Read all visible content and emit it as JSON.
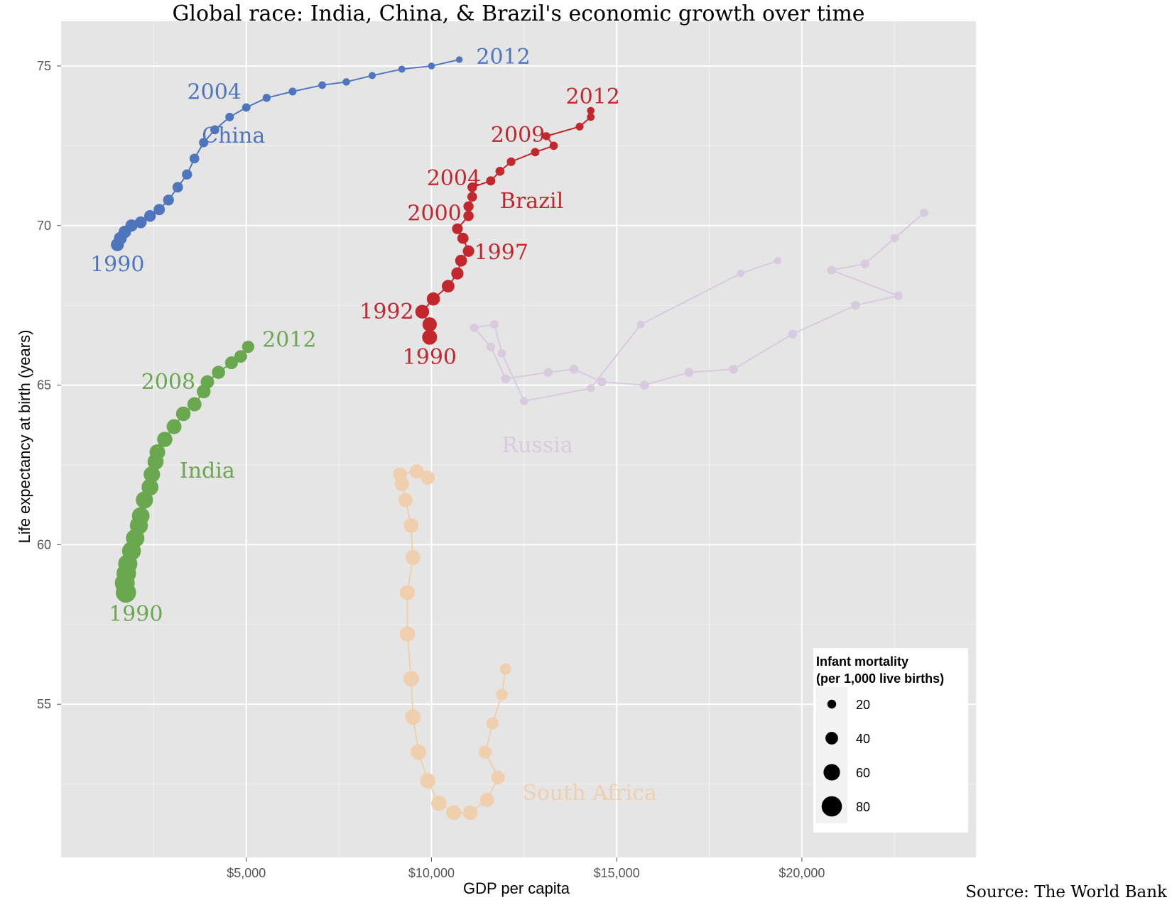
{
  "chart_data": {
    "type": "scatter",
    "title": "Global race: India, China, & Brazil's economic growth over time",
    "xlabel": "GDP per capita",
    "ylabel": "Life expectancy at birth (years)",
    "source": "Source: The World Bank",
    "xlim": [
      0,
      24700
    ],
    "ylim": [
      50.2,
      76.4
    ],
    "x_ticks": [
      5000,
      10000,
      15000,
      20000
    ],
    "x_tick_labels": [
      "$5,000",
      "$10,000",
      "$15,000",
      "$20,000"
    ],
    "y_ticks": [
      55,
      60,
      65,
      70,
      75
    ],
    "y_tick_labels": [
      "55",
      "60",
      "65",
      "70",
      "75"
    ],
    "grid": true,
    "legend": {
      "title_line1": "Infant mortality",
      "title_line2": "(per 1,000 live births)",
      "placement": "bottom-right",
      "entries": [
        {
          "label": "20",
          "value": 20
        },
        {
          "label": "40",
          "value": 40
        },
        {
          "label": "60",
          "value": 60
        },
        {
          "label": "80",
          "value": 80
        }
      ]
    },
    "series": [
      {
        "name": "China",
        "color": "#4f76bd",
        "opacity": 1,
        "points": [
          {
            "year": 1990,
            "x": 1520,
            "y": 69.4,
            "infant_mortality": 42
          },
          {
            "year": 1991,
            "x": 1600,
            "y": 69.6,
            "infant_mortality": 41
          },
          {
            "year": 1992,
            "x": 1720,
            "y": 69.8,
            "infant_mortality": 39
          },
          {
            "year": 1993,
            "x": 1900,
            "y": 70.0,
            "infant_mortality": 38
          },
          {
            "year": 1994,
            "x": 2150,
            "y": 70.1,
            "infant_mortality": 36
          },
          {
            "year": 1995,
            "x": 2400,
            "y": 70.3,
            "infant_mortality": 35
          },
          {
            "year": 1996,
            "x": 2650,
            "y": 70.5,
            "infant_mortality": 33
          },
          {
            "year": 1997,
            "x": 2900,
            "y": 70.8,
            "infant_mortality": 31
          },
          {
            "year": 1998,
            "x": 3150,
            "y": 71.2,
            "infant_mortality": 29
          },
          {
            "year": 1999,
            "x": 3400,
            "y": 71.6,
            "infant_mortality": 27
          },
          {
            "year": 2000,
            "x": 3600,
            "y": 72.1,
            "infant_mortality": 25
          },
          {
            "year": 2001,
            "x": 3850,
            "y": 72.6,
            "infant_mortality": 23
          },
          {
            "year": 2002,
            "x": 4150,
            "y": 73.0,
            "infant_mortality": 21
          },
          {
            "year": 2003,
            "x": 4550,
            "y": 73.4,
            "infant_mortality": 19
          },
          {
            "year": 2004,
            "x": 5000,
            "y": 73.7,
            "infant_mortality": 18
          },
          {
            "year": 2005,
            "x": 5550,
            "y": 74.0,
            "infant_mortality": 16
          },
          {
            "year": 2006,
            "x": 6250,
            "y": 74.2,
            "infant_mortality": 15
          },
          {
            "year": 2007,
            "x": 7050,
            "y": 74.4,
            "infant_mortality": 14
          },
          {
            "year": 2008,
            "x": 7700,
            "y": 74.5,
            "infant_mortality": 13
          },
          {
            "year": 2009,
            "x": 8400,
            "y": 74.7,
            "infant_mortality": 12
          },
          {
            "year": 2010,
            "x": 9200,
            "y": 74.9,
            "infant_mortality": 11
          },
          {
            "year": 2011,
            "x": 10000,
            "y": 75.0,
            "infant_mortality": 10
          },
          {
            "year": 2012,
            "x": 10750,
            "y": 75.2,
            "infant_mortality": 9
          }
        ],
        "labels": [
          {
            "text": "2012",
            "year": 2012
          },
          {
            "text": "2004",
            "year": 2004
          },
          {
            "text": "1990",
            "year": 1990
          },
          {
            "text": "China",
            "role": "series"
          }
        ]
      },
      {
        "name": "Brazil",
        "color": "#c1272d",
        "opacity": 1,
        "points": [
          {
            "year": 1990,
            "x": 9950,
            "y": 66.5,
            "infant_mortality": 52
          },
          {
            "year": 1991,
            "x": 9950,
            "y": 66.9,
            "infant_mortality": 49
          },
          {
            "year": 1992,
            "x": 9750,
            "y": 67.3,
            "infant_mortality": 46
          },
          {
            "year": 1993,
            "x": 10050,
            "y": 67.7,
            "infant_mortality": 43
          },
          {
            "year": 1994,
            "x": 10450,
            "y": 68.1,
            "infant_mortality": 40
          },
          {
            "year": 1995,
            "x": 10700,
            "y": 68.5,
            "infant_mortality": 38
          },
          {
            "year": 1996,
            "x": 10800,
            "y": 68.9,
            "infant_mortality": 36
          },
          {
            "year": 1997,
            "x": 11000,
            "y": 69.2,
            "infant_mortality": 34
          },
          {
            "year": 1998,
            "x": 10850,
            "y": 69.6,
            "infant_mortality": 32
          },
          {
            "year": 1999,
            "x": 10700,
            "y": 69.9,
            "infant_mortality": 30
          },
          {
            "year": 2000,
            "x": 11000,
            "y": 70.3,
            "infant_mortality": 28
          },
          {
            "year": 2001,
            "x": 11000,
            "y": 70.6,
            "infant_mortality": 27
          },
          {
            "year": 2002,
            "x": 11100,
            "y": 70.9,
            "infant_mortality": 25
          },
          {
            "year": 2003,
            "x": 11100,
            "y": 71.2,
            "infant_mortality": 24
          },
          {
            "year": 2004,
            "x": 11600,
            "y": 71.4,
            "infant_mortality": 22
          },
          {
            "year": 2005,
            "x": 11850,
            "y": 71.7,
            "infant_mortality": 21
          },
          {
            "year": 2006,
            "x": 12150,
            "y": 72.0,
            "infant_mortality": 19
          },
          {
            "year": 2007,
            "x": 12800,
            "y": 72.3,
            "infant_mortality": 18
          },
          {
            "year": 2008,
            "x": 13300,
            "y": 72.5,
            "infant_mortality": 17
          },
          {
            "year": 2009,
            "x": 13100,
            "y": 72.8,
            "infant_mortality": 16
          },
          {
            "year": 2010,
            "x": 14000,
            "y": 73.1,
            "infant_mortality": 15
          },
          {
            "year": 2011,
            "x": 14300,
            "y": 73.4,
            "infant_mortality": 14
          },
          {
            "year": 2012,
            "x": 14300,
            "y": 73.6,
            "infant_mortality": 13
          }
        ],
        "labels": [
          {
            "text": "2012",
            "year": 2012
          },
          {
            "text": "2009",
            "year": 2009
          },
          {
            "text": "2004",
            "year": 2004
          },
          {
            "text": "2000",
            "year": 2000
          },
          {
            "text": "1997",
            "year": 1997
          },
          {
            "text": "1992",
            "year": 1992
          },
          {
            "text": "1990",
            "year": 1990
          },
          {
            "text": "Brazil",
            "role": "series"
          }
        ]
      },
      {
        "name": "India",
        "color": "#6aa84f",
        "opacity": 1,
        "points": [
          {
            "year": 1990,
            "x": 1750,
            "y": 58.5,
            "infant_mortality": 80
          },
          {
            "year": 1991,
            "x": 1720,
            "y": 58.8,
            "infant_mortality": 78
          },
          {
            "year": 1992,
            "x": 1760,
            "y": 59.1,
            "infant_mortality": 76
          },
          {
            "year": 1993,
            "x": 1800,
            "y": 59.4,
            "infant_mortality": 74
          },
          {
            "year": 1994,
            "x": 1900,
            "y": 59.8,
            "infant_mortality": 72
          },
          {
            "year": 1995,
            "x": 2000,
            "y": 60.2,
            "infant_mortality": 70
          },
          {
            "year": 1996,
            "x": 2100,
            "y": 60.6,
            "infant_mortality": 68
          },
          {
            "year": 1997,
            "x": 2150,
            "y": 60.9,
            "infant_mortality": 66
          },
          {
            "year": 1998,
            "x": 2250,
            "y": 61.4,
            "infant_mortality": 64
          },
          {
            "year": 1999,
            "x": 2400,
            "y": 61.8,
            "infant_mortality": 62
          },
          {
            "year": 2000,
            "x": 2450,
            "y": 62.2,
            "infant_mortality": 60
          },
          {
            "year": 2001,
            "x": 2550,
            "y": 62.6,
            "infant_mortality": 58
          },
          {
            "year": 2002,
            "x": 2600,
            "y": 62.9,
            "infant_mortality": 56
          },
          {
            "year": 2003,
            "x": 2800,
            "y": 63.3,
            "infant_mortality": 54
          },
          {
            "year": 2004,
            "x": 3050,
            "y": 63.7,
            "infant_mortality": 52
          },
          {
            "year": 2005,
            "x": 3300,
            "y": 64.1,
            "infant_mortality": 50
          },
          {
            "year": 2006,
            "x": 3600,
            "y": 64.4,
            "infant_mortality": 48
          },
          {
            "year": 2007,
            "x": 3850,
            "y": 64.8,
            "infant_mortality": 46
          },
          {
            "year": 2008,
            "x": 3950,
            "y": 65.1,
            "infant_mortality": 44
          },
          {
            "year": 2009,
            "x": 4250,
            "y": 65.4,
            "infant_mortality": 43
          },
          {
            "year": 2010,
            "x": 4600,
            "y": 65.7,
            "infant_mortality": 41
          },
          {
            "year": 2011,
            "x": 4850,
            "y": 65.9,
            "infant_mortality": 40
          },
          {
            "year": 2012,
            "x": 5050,
            "y": 66.2,
            "infant_mortality": 38
          }
        ],
        "labels": [
          {
            "text": "2012",
            "year": 2012
          },
          {
            "text": "2008",
            "year": 2008
          },
          {
            "text": "1990",
            "year": 1990
          },
          {
            "text": "India",
            "role": "series"
          }
        ]
      },
      {
        "name": "Russia",
        "color": "#d9cadf",
        "opacity": 1,
        "points": [
          {
            "year": 1990,
            "x": 23300,
            "y": 70.4,
            "infant_mortality": 18
          },
          {
            "year": 1991,
            "x": 22500,
            "y": 69.6,
            "infant_mortality": 18
          },
          {
            "year": 1992,
            "x": 21700,
            "y": 68.8,
            "infant_mortality": 19
          },
          {
            "year": 1993,
            "x": 20800,
            "y": 68.6,
            "infant_mortality": 20
          },
          {
            "year": 1994,
            "x": 22600,
            "y": 67.8,
            "infant_mortality": 20
          },
          {
            "year": 1995,
            "x": 21450,
            "y": 67.5,
            "infant_mortality": 21
          },
          {
            "year": 1996,
            "x": 19750,
            "y": 66.6,
            "infant_mortality": 21
          },
          {
            "year": 1997,
            "x": 18150,
            "y": 65.5,
            "infant_mortality": 21
          },
          {
            "year": 1998,
            "x": 16950,
            "y": 65.4,
            "infant_mortality": 21
          },
          {
            "year": 1999,
            "x": 15750,
            "y": 65.0,
            "infant_mortality": 22
          },
          {
            "year": 2000,
            "x": 14600,
            "y": 65.1,
            "infant_mortality": 22
          },
          {
            "year": 2001,
            "x": 13850,
            "y": 65.5,
            "infant_mortality": 21
          },
          {
            "year": 2002,
            "x": 13150,
            "y": 65.4,
            "infant_mortality": 20
          },
          {
            "year": 2003,
            "x": 12000,
            "y": 65.2,
            "infant_mortality": 20
          },
          {
            "year": 2004,
            "x": 11600,
            "y": 66.2,
            "infant_mortality": 19
          },
          {
            "year": 2005,
            "x": 11150,
            "y": 66.8,
            "infant_mortality": 19
          },
          {
            "year": 2006,
            "x": 11700,
            "y": 66.9,
            "infant_mortality": 18
          },
          {
            "year": 2007,
            "x": 11900,
            "y": 66.0,
            "infant_mortality": 17
          },
          {
            "year": 2008,
            "x": 12500,
            "y": 64.5,
            "infant_mortality": 16
          },
          {
            "year": 2009,
            "x": 14300,
            "y": 64.9,
            "infant_mortality": 15
          },
          {
            "year": 2010,
            "x": 15650,
            "y": 66.9,
            "infant_mortality": 14
          },
          {
            "year": 2011,
            "x": 18350,
            "y": 68.5,
            "infant_mortality": 13
          },
          {
            "year": 2012,
            "x": 19350,
            "y": 68.9,
            "infant_mortality": 12
          }
        ],
        "labels": [
          {
            "text": "Russia",
            "role": "series"
          }
        ]
      },
      {
        "name": "South Africa",
        "color": "#f0cfae",
        "opacity": 1,
        "points": [
          {
            "year": 1990,
            "x": 9900,
            "y": 62.1,
            "infant_mortality": 47
          },
          {
            "year": 1991,
            "x": 9600,
            "y": 62.3,
            "infant_mortality": 47
          },
          {
            "year": 1992,
            "x": 9150,
            "y": 62.2,
            "infant_mortality": 47
          },
          {
            "year": 1993,
            "x": 9200,
            "y": 61.9,
            "infant_mortality": 48
          },
          {
            "year": 1994,
            "x": 9300,
            "y": 61.4,
            "infant_mortality": 49
          },
          {
            "year": 1995,
            "x": 9450,
            "y": 60.6,
            "infant_mortality": 51
          },
          {
            "year": 1996,
            "x": 9500,
            "y": 59.6,
            "infant_mortality": 52
          },
          {
            "year": 1997,
            "x": 9350,
            "y": 58.5,
            "infant_mortality": 53
          },
          {
            "year": 1998,
            "x": 9350,
            "y": 57.2,
            "infant_mortality": 54
          },
          {
            "year": 1999,
            "x": 9450,
            "y": 55.8,
            "infant_mortality": 55
          },
          {
            "year": 2000,
            "x": 9500,
            "y": 54.6,
            "infant_mortality": 56
          },
          {
            "year": 2001,
            "x": 9650,
            "y": 53.5,
            "infant_mortality": 56
          },
          {
            "year": 2002,
            "x": 9900,
            "y": 52.6,
            "infant_mortality": 55
          },
          {
            "year": 2003,
            "x": 10200,
            "y": 51.9,
            "infant_mortality": 54
          },
          {
            "year": 2004,
            "x": 10600,
            "y": 51.6,
            "infant_mortality": 52
          },
          {
            "year": 2005,
            "x": 11050,
            "y": 51.6,
            "infant_mortality": 50
          },
          {
            "year": 2006,
            "x": 11500,
            "y": 52.0,
            "infant_mortality": 48
          },
          {
            "year": 2007,
            "x": 11800,
            "y": 52.7,
            "infant_mortality": 45
          },
          {
            "year": 2008,
            "x": 11450,
            "y": 53.5,
            "infant_mortality": 42
          },
          {
            "year": 2009,
            "x": 11650,
            "y": 54.4,
            "infant_mortality": 38
          },
          {
            "year": 2010,
            "x": 11900,
            "y": 55.3,
            "infant_mortality": 35
          },
          {
            "year": 2011,
            "x": 12000,
            "y": 56.1,
            "infant_mortality": 33
          }
        ],
        "labels": [
          {
            "text": "South Africa",
            "role": "series"
          }
        ]
      }
    ]
  }
}
